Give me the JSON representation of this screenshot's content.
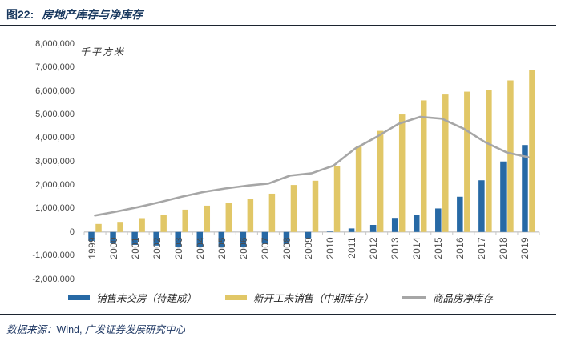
{
  "figure": {
    "label": "图22:",
    "title": "房地产库存与净库存",
    "unit": "千平方米",
    "source_label": "数据来源：",
    "source_vendor": "Wind, ",
    "source_org": "广发证券发展研究中心"
  },
  "colors": {
    "bar_blue": "#2769A5",
    "bar_yellow": "#E1C767",
    "line_gray": "#A6A6A6",
    "title_navy": "#17375E",
    "rule_dark": "#1c2430",
    "axis_line": "#C8C8C8",
    "axis_text": "#4d4d4d"
  },
  "chart_data": {
    "type": "bar+line",
    "title": "房地产库存与净库存",
    "ylabel_unit": "千平方米",
    "categories": [
      "1999",
      "2000",
      "2001",
      "2002",
      "2003",
      "2004",
      "2005",
      "2006",
      "2007",
      "2008",
      "2009",
      "2010",
      "2011",
      "2012",
      "2013",
      "2014",
      "2015",
      "2016",
      "2017",
      "2018",
      "2019"
    ],
    "series": [
      {
        "name": "销售未交房（待建成）",
        "type": "bar",
        "color": "#2769A5",
        "values": [
          -380000,
          -450000,
          -550000,
          -580000,
          -650000,
          -630000,
          -660000,
          -620000,
          -500000,
          -520000,
          -260000,
          20000,
          150000,
          300000,
          600000,
          720000,
          1000000,
          1500000,
          2200000,
          3000000,
          3700000
        ]
      },
      {
        "name": "新开工未销售（中期库存）",
        "type": "bar",
        "color": "#E1C767",
        "values": [
          340000,
          430000,
          590000,
          740000,
          950000,
          1120000,
          1250000,
          1400000,
          1630000,
          2000000,
          2180000,
          2800000,
          3650000,
          4300000,
          5000000,
          5600000,
          5850000,
          5970000,
          6050000,
          6450000,
          6880000
        ]
      },
      {
        "name": "商品房净库存",
        "type": "line",
        "color": "#A6A6A6",
        "values": [
          700000,
          870000,
          1060000,
          1270000,
          1500000,
          1700000,
          1850000,
          1970000,
          2060000,
          2400000,
          2500000,
          2820000,
          3550000,
          4050000,
          4600000,
          4900000,
          4820000,
          4400000,
          3820000,
          3380000,
          3180000
        ]
      }
    ],
    "ylim": [
      -2000000,
      8000000
    ],
    "ytick_step": 1000000,
    "ytick_labels": [
      "8,000,000",
      "7,000,000",
      "6,000,000",
      "5,000,000",
      "4,000,000",
      "3,000,000",
      "2,000,000",
      "1,000,000",
      "0",
      "-1,000,000",
      "-2,000,000"
    ],
    "grid": false,
    "legend_position": "bottom"
  }
}
